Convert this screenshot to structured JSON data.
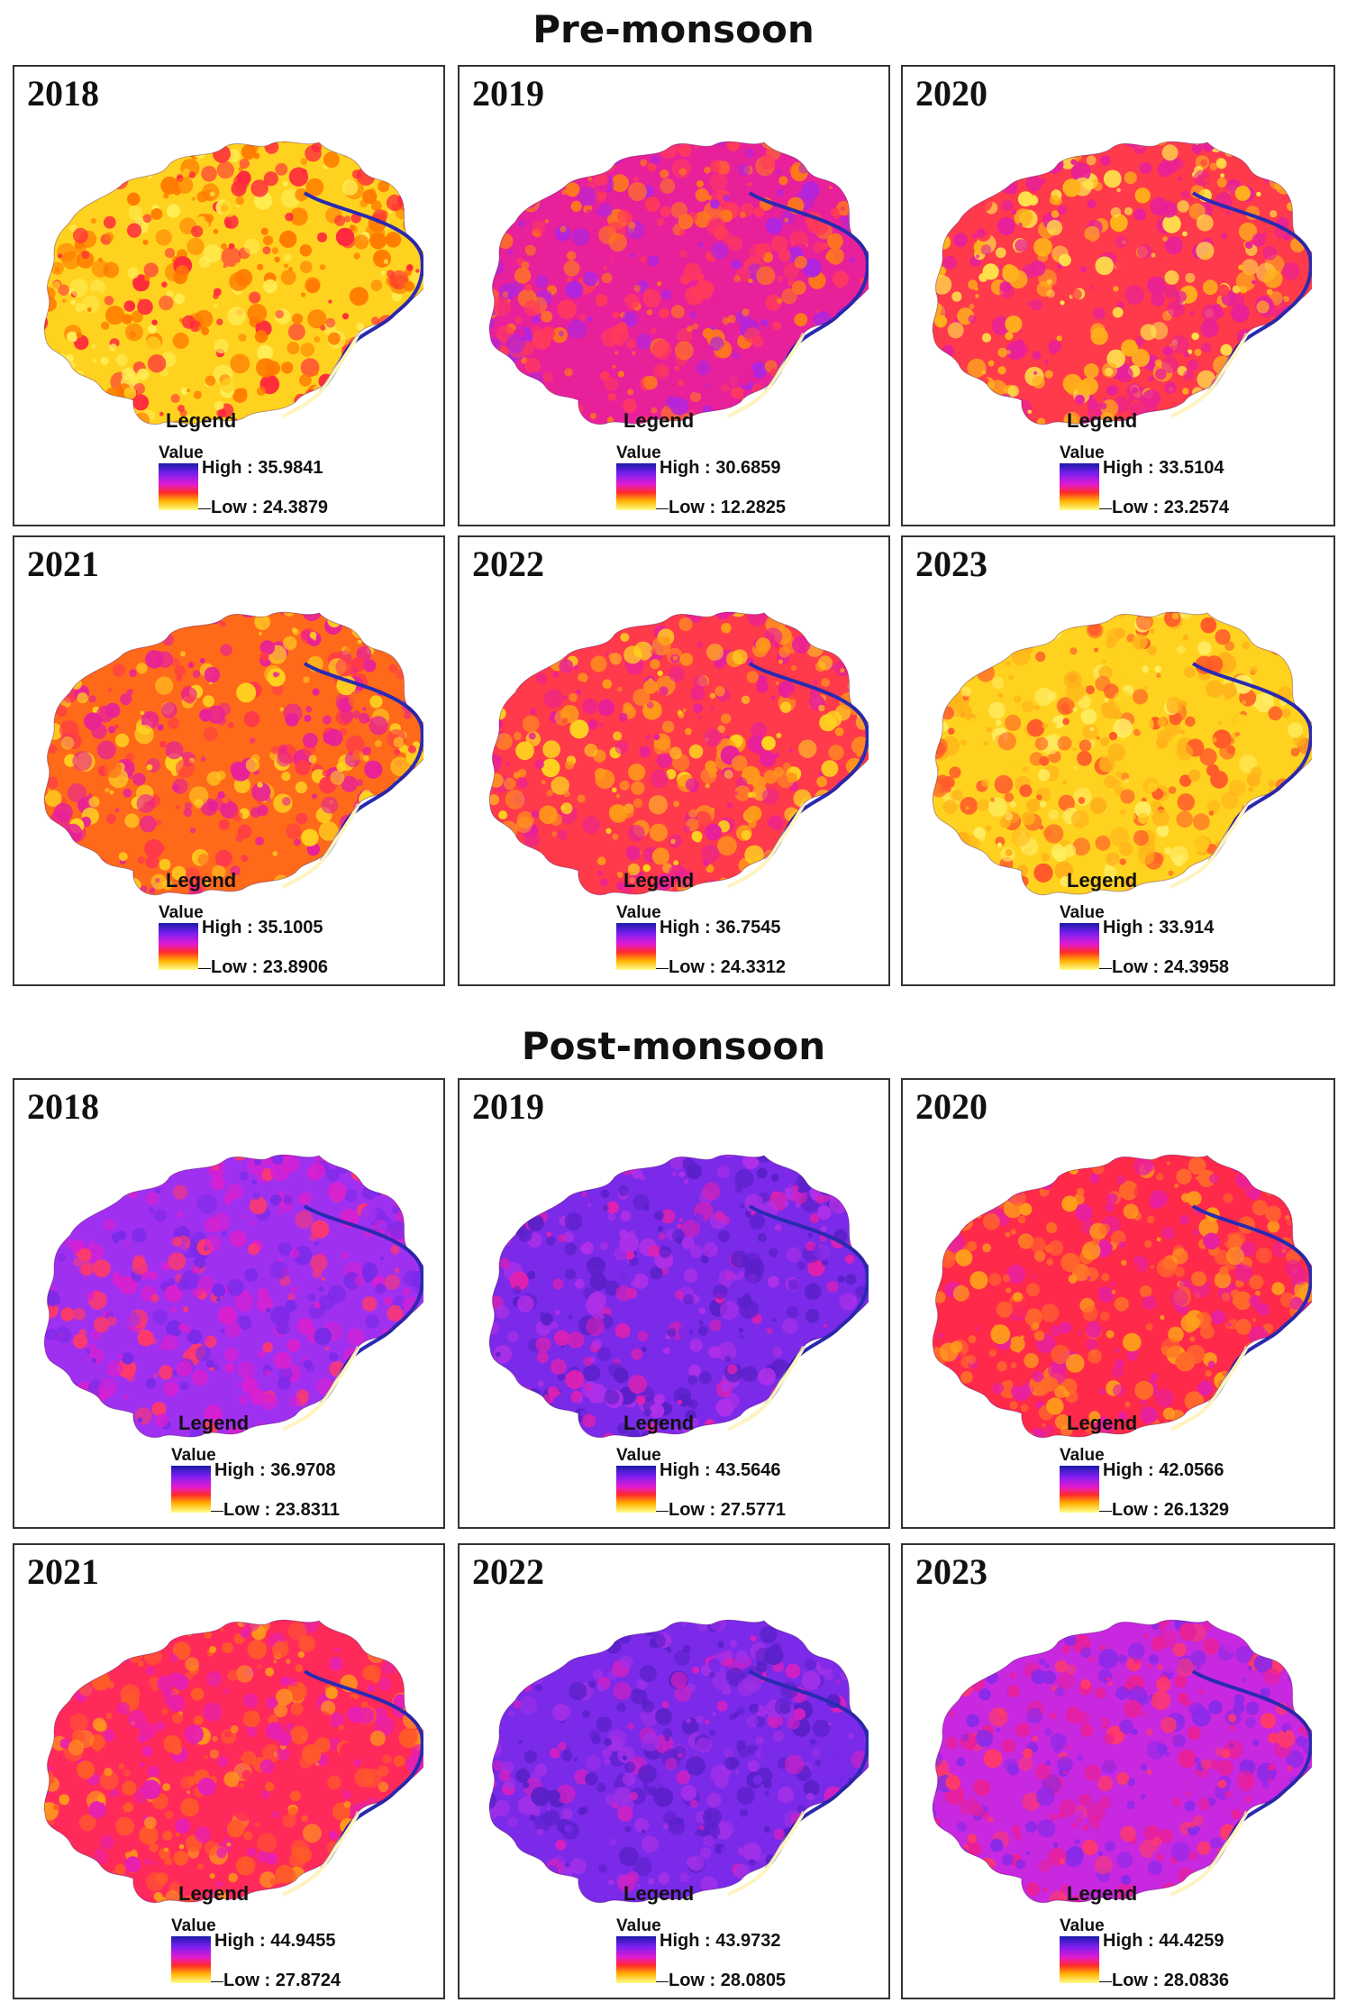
{
  "sections": [
    {
      "title": "Pre-monsoon",
      "panels": [
        {
          "year": "2018",
          "high": "High : 35.9841",
          "low": "Low : 24.3879",
          "palette": [
            "#ffd21f",
            "#ff7a00",
            "#ff2a3d",
            "#ffee55"
          ]
        },
        {
          "year": "2019",
          "high": "High : 30.6859",
          "low": "Low : 12.2825",
          "palette": [
            "#e8209a",
            "#ff3a5a",
            "#ff7a1a",
            "#b025e0"
          ]
        },
        {
          "year": "2020",
          "high": "High : 33.5104",
          "low": "Low : 23.2574",
          "palette": [
            "#ff3a4a",
            "#e8209a",
            "#ffb21a",
            "#ffe24a"
          ]
        },
        {
          "year": "2021",
          "high": "High : 35.1005",
          "low": "Low : 23.8906",
          "palette": [
            "#ff6a1a",
            "#e8209a",
            "#ffd21f",
            "#ff3a4a"
          ]
        },
        {
          "year": "2022",
          "high": "High : 36.7545",
          "low": "Low : 24.3312",
          "palette": [
            "#ff3a4a",
            "#ff9a1a",
            "#e8209a",
            "#ffd21f"
          ]
        },
        {
          "year": "2023",
          "high": "High : 33.914",
          "low": "Low : 24.3958",
          "palette": [
            "#ffd21f",
            "#ffb21a",
            "#ff5a2a",
            "#ffee66"
          ]
        }
      ]
    },
    {
      "title": "Post-monsoon",
      "panels": [
        {
          "year": "2018",
          "high": "High : 36.9708",
          "low": "Low : 23.8311",
          "palette": [
            "#a030f0",
            "#d820d0",
            "#7a2ae8",
            "#ff3a6a"
          ]
        },
        {
          "year": "2019",
          "high": "High : 43.5646",
          "low": "Low : 27.5771",
          "palette": [
            "#7a2ae8",
            "#5a20c8",
            "#b030e8",
            "#e020b0"
          ]
        },
        {
          "year": "2020",
          "high": "High : 42.0566",
          "low": "Low : 26.1329",
          "palette": [
            "#ff2a4a",
            "#ff6a2a",
            "#e820a0",
            "#ffa01a"
          ]
        },
        {
          "year": "2021",
          "high": "High : 44.9455",
          "low": "Low : 27.8724",
          "palette": [
            "#ff2a5a",
            "#ff5a2a",
            "#e820b0",
            "#ff9a1a"
          ]
        },
        {
          "year": "2022",
          "high": "High : 43.9732",
          "low": "Low : 28.0805",
          "palette": [
            "#7a2ae8",
            "#5a20c8",
            "#a030e8",
            "#d820c0"
          ]
        },
        {
          "year": "2023",
          "high": "High : 44.4259",
          "low": "Low : 28.0836",
          "palette": [
            "#c828e0",
            "#e8209a",
            "#8a2ae8",
            "#ff3a6a"
          ]
        }
      ]
    }
  ],
  "legend_title": "Legend",
  "value_label": "Value"
}
